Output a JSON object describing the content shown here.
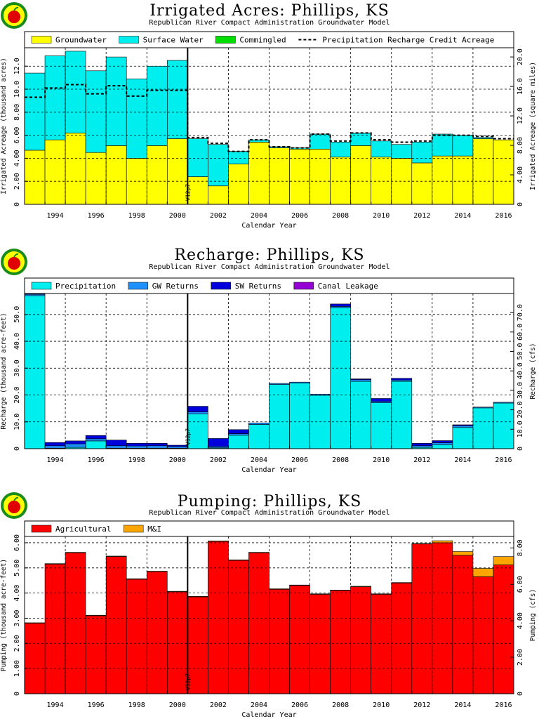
{
  "colors": {
    "groundwater": "#ffff00",
    "surface_water": "#00eeee",
    "commingled": "#00dd00",
    "precipitation": "#00eeee",
    "gw_returns": "#1e90ff",
    "sw_returns": "#0000dd",
    "canal_leakage": "#9400d3",
    "agricultural": "#ff0000",
    "mi": "#ffa500",
    "logo_outer": "#1a8c1a",
    "logo_ring": "#ffff00",
    "logo_apple": "#e00000"
  },
  "figure": {
    "xlabel": "Calendar Year",
    "version_label": "V12p7",
    "marker_year": 2000.5
  },
  "chart_data": [
    {
      "type": "bar",
      "title": "Irrigated Acres: Phillips, KS",
      "subtitle": "Republican River Compact Administration Groundwater Model",
      "ylabel": "Irrigated Acreage (thousand acres)",
      "y2label": "Irrigated Acreage (square miles)",
      "ylim": [
        0,
        13.6
      ],
      "yticks": [
        0,
        2.0,
        4.0,
        6.0,
        8.0,
        10.0,
        12.0
      ],
      "ytick_labels": [
        "0",
        "2.00",
        "4.00",
        "6.00",
        "8.00",
        "10.0",
        "12.0"
      ],
      "y2lim": [
        0,
        21.25
      ],
      "y2ticks": [
        0,
        4,
        8,
        12,
        16,
        20
      ],
      "y2tick_labels": [
        "0",
        "4.00",
        "8.00",
        "12.0",
        "16.0",
        "20.0"
      ],
      "x": [
        1993,
        1994,
        1995,
        1996,
        1997,
        1998,
        1999,
        2000,
        2001,
        2002,
        2003,
        2004,
        2005,
        2006,
        2007,
        2008,
        2009,
        2010,
        2011,
        2012,
        2013,
        2014,
        2015,
        2016
      ],
      "xtick_labels": [
        "1994",
        "1996",
        "1998",
        "2000",
        "2002",
        "2004",
        "2006",
        "2008",
        "2010",
        "2012",
        "2014",
        "2016"
      ],
      "series": [
        {
          "name": "Groundwater",
          "color": "groundwater",
          "values": [
            4.7,
            5.6,
            6.2,
            4.5,
            5.1,
            4.0,
            5.1,
            5.7,
            2.4,
            1.6,
            3.5,
            5.4,
            4.9,
            4.8,
            4.8,
            4.1,
            5.1,
            4.1,
            4.0,
            3.6,
            4.2,
            4.2,
            5.7,
            5.6
          ]
        },
        {
          "name": "Surface Water",
          "color": "surface_water",
          "values": [
            6.7,
            7.3,
            7.1,
            7.1,
            7.7,
            6.9,
            6.9,
            6.8,
            3.3,
            3.6,
            1.1,
            0.2,
            0.1,
            0.1,
            1.3,
            1.3,
            1.1,
            1.4,
            1.2,
            1.8,
            1.9,
            1.8,
            0.1,
            0.0
          ]
        },
        {
          "name": "Commingled",
          "color": "commingled",
          "values": [
            0,
            0,
            0,
            0,
            0,
            0,
            0,
            0,
            0,
            0,
            0,
            0,
            0,
            0,
            0,
            0,
            0,
            0,
            0,
            0,
            0,
            0,
            0,
            0
          ]
        }
      ],
      "line_series": {
        "name": "Precipitation Recharge Credit Acreage",
        "style": "dashed",
        "values": [
          9.3,
          10.1,
          10.4,
          9.6,
          10.3,
          9.4,
          9.9,
          9.9,
          5.8,
          5.3,
          4.6,
          5.6,
          5.0,
          4.9,
          6.1,
          5.5,
          6.2,
          5.6,
          5.4,
          5.5,
          6.0,
          6.0,
          5.9,
          5.7
        ]
      },
      "legend": [
        "Groundwater",
        "Surface Water",
        "Commingled",
        "Precipitation Recharge Credit Acreage"
      ],
      "legend_position": "top",
      "grid": true
    },
    {
      "type": "bar",
      "title": "Recharge: Phillips, KS",
      "subtitle": "Republican River Compact Administration Groundwater Model",
      "ylabel": "Recharge (thousand acre-feet)",
      "y2label": "Recharge (cfs)",
      "ylim": [
        0,
        57.8
      ],
      "yticks": [
        0,
        10,
        20,
        30,
        40,
        50
      ],
      "ytick_labels": [
        "0",
        "10.0",
        "20.0",
        "30.0",
        "40.0",
        "50.0"
      ],
      "y2lim": [
        0,
        79.8
      ],
      "y2ticks": [
        0,
        10,
        20,
        30,
        40,
        50,
        60,
        70
      ],
      "y2tick_labels": [
        "0",
        "10.0",
        "20.0",
        "30.0",
        "40.0",
        "50.0",
        "60.0",
        "70.0"
      ],
      "x": [
        1993,
        1994,
        1995,
        1996,
        1997,
        1998,
        1999,
        2000,
        2001,
        2002,
        2003,
        2004,
        2005,
        2006,
        2007,
        2008,
        2009,
        2010,
        2011,
        2012,
        2013,
        2014,
        2015,
        2016
      ],
      "xtick_labels": [
        "1994",
        "1996",
        "1998",
        "2000",
        "2002",
        "2004",
        "2006",
        "2008",
        "2010",
        "2012",
        "2014",
        "2016"
      ],
      "series": [
        {
          "name": "Precipitation",
          "color": "precipitation",
          "values": [
            57.0,
            0.2,
            0.5,
            2.9,
            0.2,
            0.2,
            0.2,
            0.2,
            12.9,
            0.3,
            5.0,
            9.0,
            23.9,
            24.4,
            19.9,
            52.5,
            25.1,
            17.1,
            25.1,
            0.5,
            1.5,
            7.9,
            15.2,
            17.0
          ]
        },
        {
          "name": "GW Returns",
          "color": "gw_returns",
          "values": [
            0.5,
            0.9,
            1.3,
            0.8,
            0.9,
            0.8,
            0.9,
            0.6,
            0.8,
            0.5,
            0.6,
            0.6,
            0.4,
            0.4,
            0.4,
            0.5,
            0.6,
            0.5,
            0.5,
            0.6,
            0.7,
            0.6,
            0.3,
            0.3
          ]
        },
        {
          "name": "SW Returns",
          "color": "sw_returns",
          "values": [
            0.2,
            1.2,
            1.1,
            1.2,
            2.1,
            1.0,
            0.9,
            0.5,
            2.1,
            3.0,
            1.5,
            0.0,
            0.0,
            0.0,
            0.0,
            0.9,
            0.3,
            1.1,
            0.6,
            0.9,
            0.8,
            0.4,
            0.0,
            0.0
          ]
        },
        {
          "name": "Canal Leakage",
          "color": "canal_leakage",
          "values": [
            0,
            0,
            0,
            0,
            0,
            0,
            0,
            0,
            0,
            0,
            0,
            0,
            0,
            0,
            0,
            0,
            0,
            0,
            0,
            0,
            0,
            0,
            0,
            0
          ]
        }
      ],
      "legend": [
        "Precipitation",
        "GW Returns",
        "SW Returns",
        "Canal Leakage"
      ],
      "legend_position": "top",
      "grid": true
    },
    {
      "type": "bar",
      "title": "Pumping: Phillips, KS",
      "subtitle": "Republican River Compact Administration Groundwater Model",
      "ylabel": "Pumping (thousand acre-feet)",
      "y2label": "Pumping (cfs)",
      "ylim": [
        0,
        6.25
      ],
      "yticks": [
        0,
        1,
        2,
        3,
        4,
        5,
        6
      ],
      "ytick_labels": [
        "0",
        "1.00",
        "2.00",
        "3.00",
        "4.00",
        "5.00",
        "6.00"
      ],
      "y2lim": [
        0,
        8.63
      ],
      "y2ticks": [
        0,
        2,
        4,
        6,
        8
      ],
      "y2tick_labels": [
        "0",
        "2.00",
        "4.00",
        "6.00",
        "8.00"
      ],
      "x": [
        1993,
        1994,
        1995,
        1996,
        1997,
        1998,
        1999,
        2000,
        2001,
        2002,
        2003,
        2004,
        2005,
        2006,
        2007,
        2008,
        2009,
        2010,
        2011,
        2012,
        2013,
        2014,
        2015,
        2016
      ],
      "xtick_labels": [
        "1994",
        "1996",
        "1998",
        "2000",
        "2002",
        "2004",
        "2006",
        "2008",
        "2010",
        "2012",
        "2014",
        "2016"
      ],
      "series": [
        {
          "name": "Agricultural",
          "color": "agricultural",
          "values": [
            2.8,
            5.15,
            5.6,
            3.1,
            5.45,
            4.55,
            4.85,
            4.05,
            3.85,
            6.05,
            5.3,
            5.6,
            4.15,
            4.3,
            3.95,
            4.1,
            4.25,
            3.95,
            4.4,
            5.95,
            6.0,
            5.5,
            4.65,
            5.12
          ]
        },
        {
          "name": "M&I",
          "color": "mi",
          "values": [
            0.02,
            0.02,
            0.02,
            0.02,
            0.02,
            0.02,
            0.02,
            0.02,
            0.02,
            0.02,
            0.02,
            0.02,
            0.02,
            0.02,
            0.02,
            0.02,
            0.02,
            0.02,
            0.02,
            0.02,
            0.08,
            0.15,
            0.33,
            0.33
          ]
        }
      ],
      "legend": [
        "Agricultural",
        "M&I"
      ],
      "legend_position": "top",
      "grid": true
    }
  ]
}
